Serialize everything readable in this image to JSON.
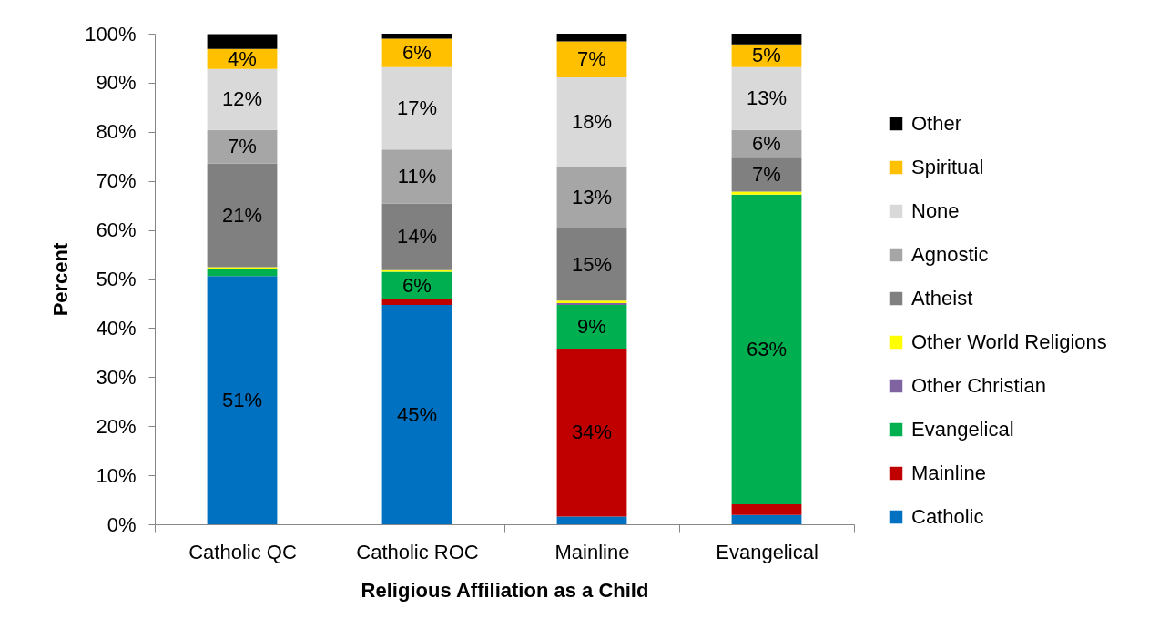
{
  "chart_data": {
    "type": "bar",
    "stacked": true,
    "xlabel": "Religious Affiliation as a Child",
    "ylabel": "Percent",
    "categories": [
      "Catholic QC",
      "Catholic ROC",
      "Mainline",
      "Evangelical"
    ],
    "ylim": [
      0,
      100
    ],
    "yticks": [
      {
        "value": 0,
        "label": "0%"
      },
      {
        "value": 10,
        "label": "10%"
      },
      {
        "value": 20,
        "label": "20%"
      },
      {
        "value": 30,
        "label": "30%"
      },
      {
        "value": 40,
        "label": "40%"
      },
      {
        "value": 50,
        "label": "50%"
      },
      {
        "value": 60,
        "label": "60%"
      },
      {
        "value": 70,
        "label": "70%"
      },
      {
        "value": 80,
        "label": "80%"
      },
      {
        "value": 90,
        "label": "90%"
      },
      {
        "value": 100,
        "label": "100%"
      }
    ],
    "legend": "right",
    "grid": false,
    "series": [
      {
        "name": "Catholic",
        "color": "#0070c0",
        "values": [
          50.6,
          44.7,
          1.6,
          1.9
        ],
        "value_labels": [
          "51%",
          "45%",
          null,
          null
        ]
      },
      {
        "name": "Mainline",
        "color": "#c00000",
        "values": [
          null,
          1.2,
          34.2,
          2.2
        ],
        "value_labels": [
          null,
          null,
          "34%",
          null
        ]
      },
      {
        "name": "Evangelical",
        "color": "#00b050",
        "values": [
          1.5,
          5.6,
          8.9,
          63.1
        ],
        "value_labels": [
          null,
          "6%",
          "9%",
          "63%"
        ]
      },
      {
        "name": "Other Christian",
        "color": "#8064a2",
        "values": [
          null,
          null,
          0.4,
          null
        ]
      },
      {
        "name": "Other World Religions",
        "color": "#ffff00",
        "values": [
          0.3,
          0.3,
          0.5,
          0.6
        ]
      },
      {
        "name": "Atheist",
        "color": "#808080",
        "values": [
          21.1,
          13.6,
          14.7,
          6.9
        ],
        "value_labels": [
          "21%",
          "14%",
          "15%",
          "7%"
        ]
      },
      {
        "name": "Agnostic",
        "color": "#a6a6a6",
        "values": [
          6.9,
          11.0,
          12.6,
          5.7
        ],
        "value_labels": [
          "7%",
          "11%",
          "13%",
          "6%"
        ]
      },
      {
        "name": "None",
        "color": "#d9d9d9",
        "values": [
          12.4,
          16.8,
          18.2,
          12.8
        ],
        "value_labels": [
          "12%",
          "17%",
          "18%",
          "13%"
        ]
      },
      {
        "name": "Spiritual",
        "color": "#ffc000",
        "values": [
          4.1,
          5.8,
          7.3,
          4.6
        ],
        "value_labels": [
          "4%",
          "6%",
          "7%",
          "5%"
        ]
      },
      {
        "name": "Other",
        "color": "#000000",
        "values": [
          3.0,
          1.0,
          1.6,
          2.2
        ]
      }
    ]
  }
}
